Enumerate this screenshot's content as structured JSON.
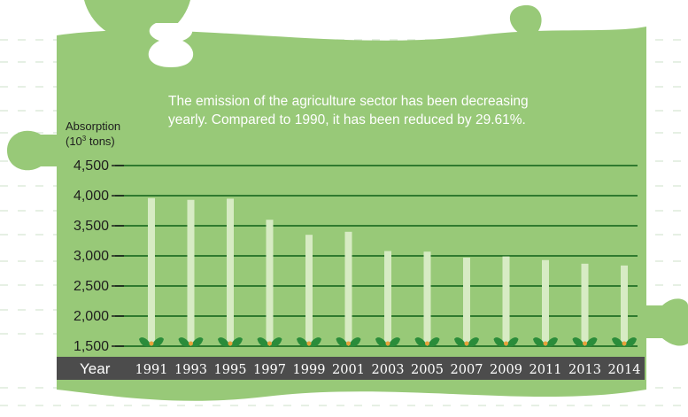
{
  "chart_data": {
    "type": "bar",
    "annotation_lines": [
      "The emission of the agriculture sector has been decreasing",
      "yearly. Compared to 1990, it has been reduced by 29.61%."
    ],
    "ylabel_line1": "Absorption",
    "ylabel_line2_prefix": "(10",
    "ylabel_line2_sup": "3",
    "ylabel_line2_suffix": " tons)",
    "xlabel": "Year",
    "ylim": [
      1500,
      4500
    ],
    "yticks": [
      "4,500",
      "4,000",
      "3,500",
      "3,000",
      "2,500",
      "2,000",
      "1,500"
    ],
    "ytick_values": [
      4500,
      4000,
      3500,
      3000,
      2500,
      2000,
      1500
    ],
    "categories": [
      "1991",
      "1993",
      "1995",
      "1997",
      "1999",
      "2001",
      "2003",
      "2005",
      "2007",
      "2009",
      "2011",
      "2013",
      "2014"
    ],
    "values": [
      3960,
      3930,
      3950,
      3600,
      3350,
      3400,
      3080,
      3070,
      2970,
      2990,
      2930,
      2870,
      2840
    ],
    "grid": true,
    "colors": {
      "panel": "#98c978",
      "gridline": "#2f7a2f",
      "bar": "#d7ebc4",
      "sprout": "#2a8c3a",
      "sprout_center": "#e8a23a",
      "year_band": "#4c4c4c"
    }
  }
}
